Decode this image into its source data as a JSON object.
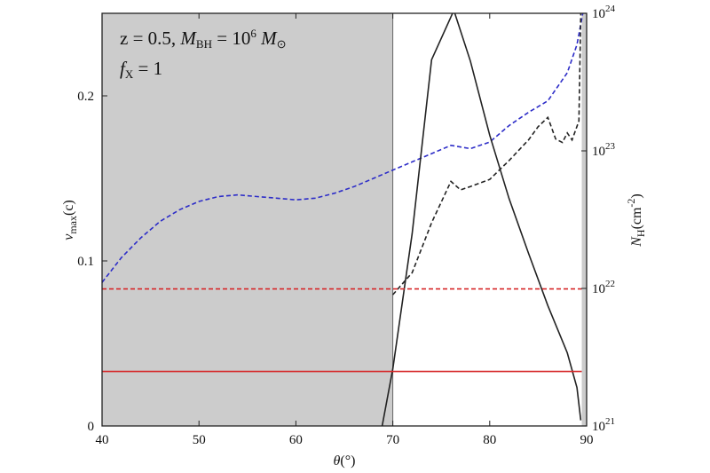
{
  "chart_data": {
    "type": "line",
    "title": "",
    "xlabel": "θ(°)",
    "ylabel_left": "v_max(c)",
    "ylabel_right": "N_H(cm^-2)",
    "xlim": [
      40,
      90
    ],
    "ylim_left": [
      0,
      0.25
    ],
    "ylim_right": [
      1e+21,
      1e+24
    ],
    "y_right_scale": "log",
    "grid": false,
    "x_ticks": [
      "40",
      "50",
      "60",
      "70",
      "80",
      "90"
    ],
    "y_left_ticks": [
      "0",
      "0.1",
      "0.2"
    ],
    "y_right_ticks": [
      {
        "base": "10",
        "exp": "21"
      },
      {
        "base": "10",
        "exp": "22"
      },
      {
        "base": "10",
        "exp": "23"
      },
      {
        "base": "10",
        "exp": "24"
      }
    ],
    "shaded_regions": [
      {
        "x": [
          40,
          70
        ],
        "color": "#cccccc"
      },
      {
        "x": [
          89.5,
          90
        ],
        "color": "#cccccc"
      }
    ],
    "annotation": {
      "line1": "z = 0.5,  M_BH = 10^6 M_⊙",
      "line2": "f_X = 1"
    },
    "series": [
      {
        "axis": "left",
        "style": "dashed",
        "color": "#2d2dc8",
        "x": [
          40,
          42,
          44,
          46,
          48,
          50,
          52,
          54,
          56,
          58,
          60,
          62,
          64,
          66,
          68,
          70,
          72,
          74,
          76,
          78,
          80,
          82,
          84,
          86,
          88,
          89,
          89.7
        ],
        "y": [
          0.087,
          0.102,
          0.114,
          0.124,
          0.131,
          0.136,
          0.139,
          0.14,
          0.139,
          0.138,
          0.137,
          0.138,
          0.141,
          0.145,
          0.15,
          0.155,
          0.16,
          0.165,
          0.17,
          0.168,
          0.172,
          0.182,
          0.19,
          0.197,
          0.214,
          0.231,
          0.253
        ]
      },
      {
        "axis": "right",
        "style": "dashed",
        "color": "#222222",
        "x": [
          70,
          72,
          74,
          76,
          77,
          78,
          80,
          82,
          84,
          85,
          86,
          86.8,
          87.5,
          88,
          88.5,
          89.2,
          89.4
        ],
        "y": [
          9e+21,
          1.3e+22,
          3e+22,
          6e+22,
          5.2e+22,
          5.5e+22,
          6.2e+22,
          8.5e+22,
          1.2e+23,
          1.5e+23,
          1.75e+23,
          1.22e+23,
          1.15e+23,
          1.35e+23,
          1.2e+23,
          1.65e+23,
          1e+24
        ]
      },
      {
        "axis": "right",
        "style": "solid",
        "color": "#222222",
        "x": [
          68.9,
          70,
          72,
          74,
          76.3,
          78,
          80,
          82,
          84,
          86,
          88,
          89,
          89.4
        ],
        "y": [
          1e+21,
          2.6e+21,
          2.5e+22,
          4.6e+23,
          1.05e+24,
          4.5e+23,
          1.3e+23,
          4.5e+22,
          1.8e+22,
          7.5e+21,
          3.4e+21,
          1.9e+21,
          1.1e+21
        ]
      },
      {
        "axis": "left",
        "style": "dashed",
        "color": "#d62728",
        "x": [
          40,
          89.5
        ],
        "y": [
          0.083,
          0.083
        ]
      },
      {
        "axis": "left",
        "style": "solid",
        "color": "#d62728",
        "x": [
          40,
          89.5
        ],
        "y": [
          0.033,
          0.033
        ]
      }
    ]
  }
}
